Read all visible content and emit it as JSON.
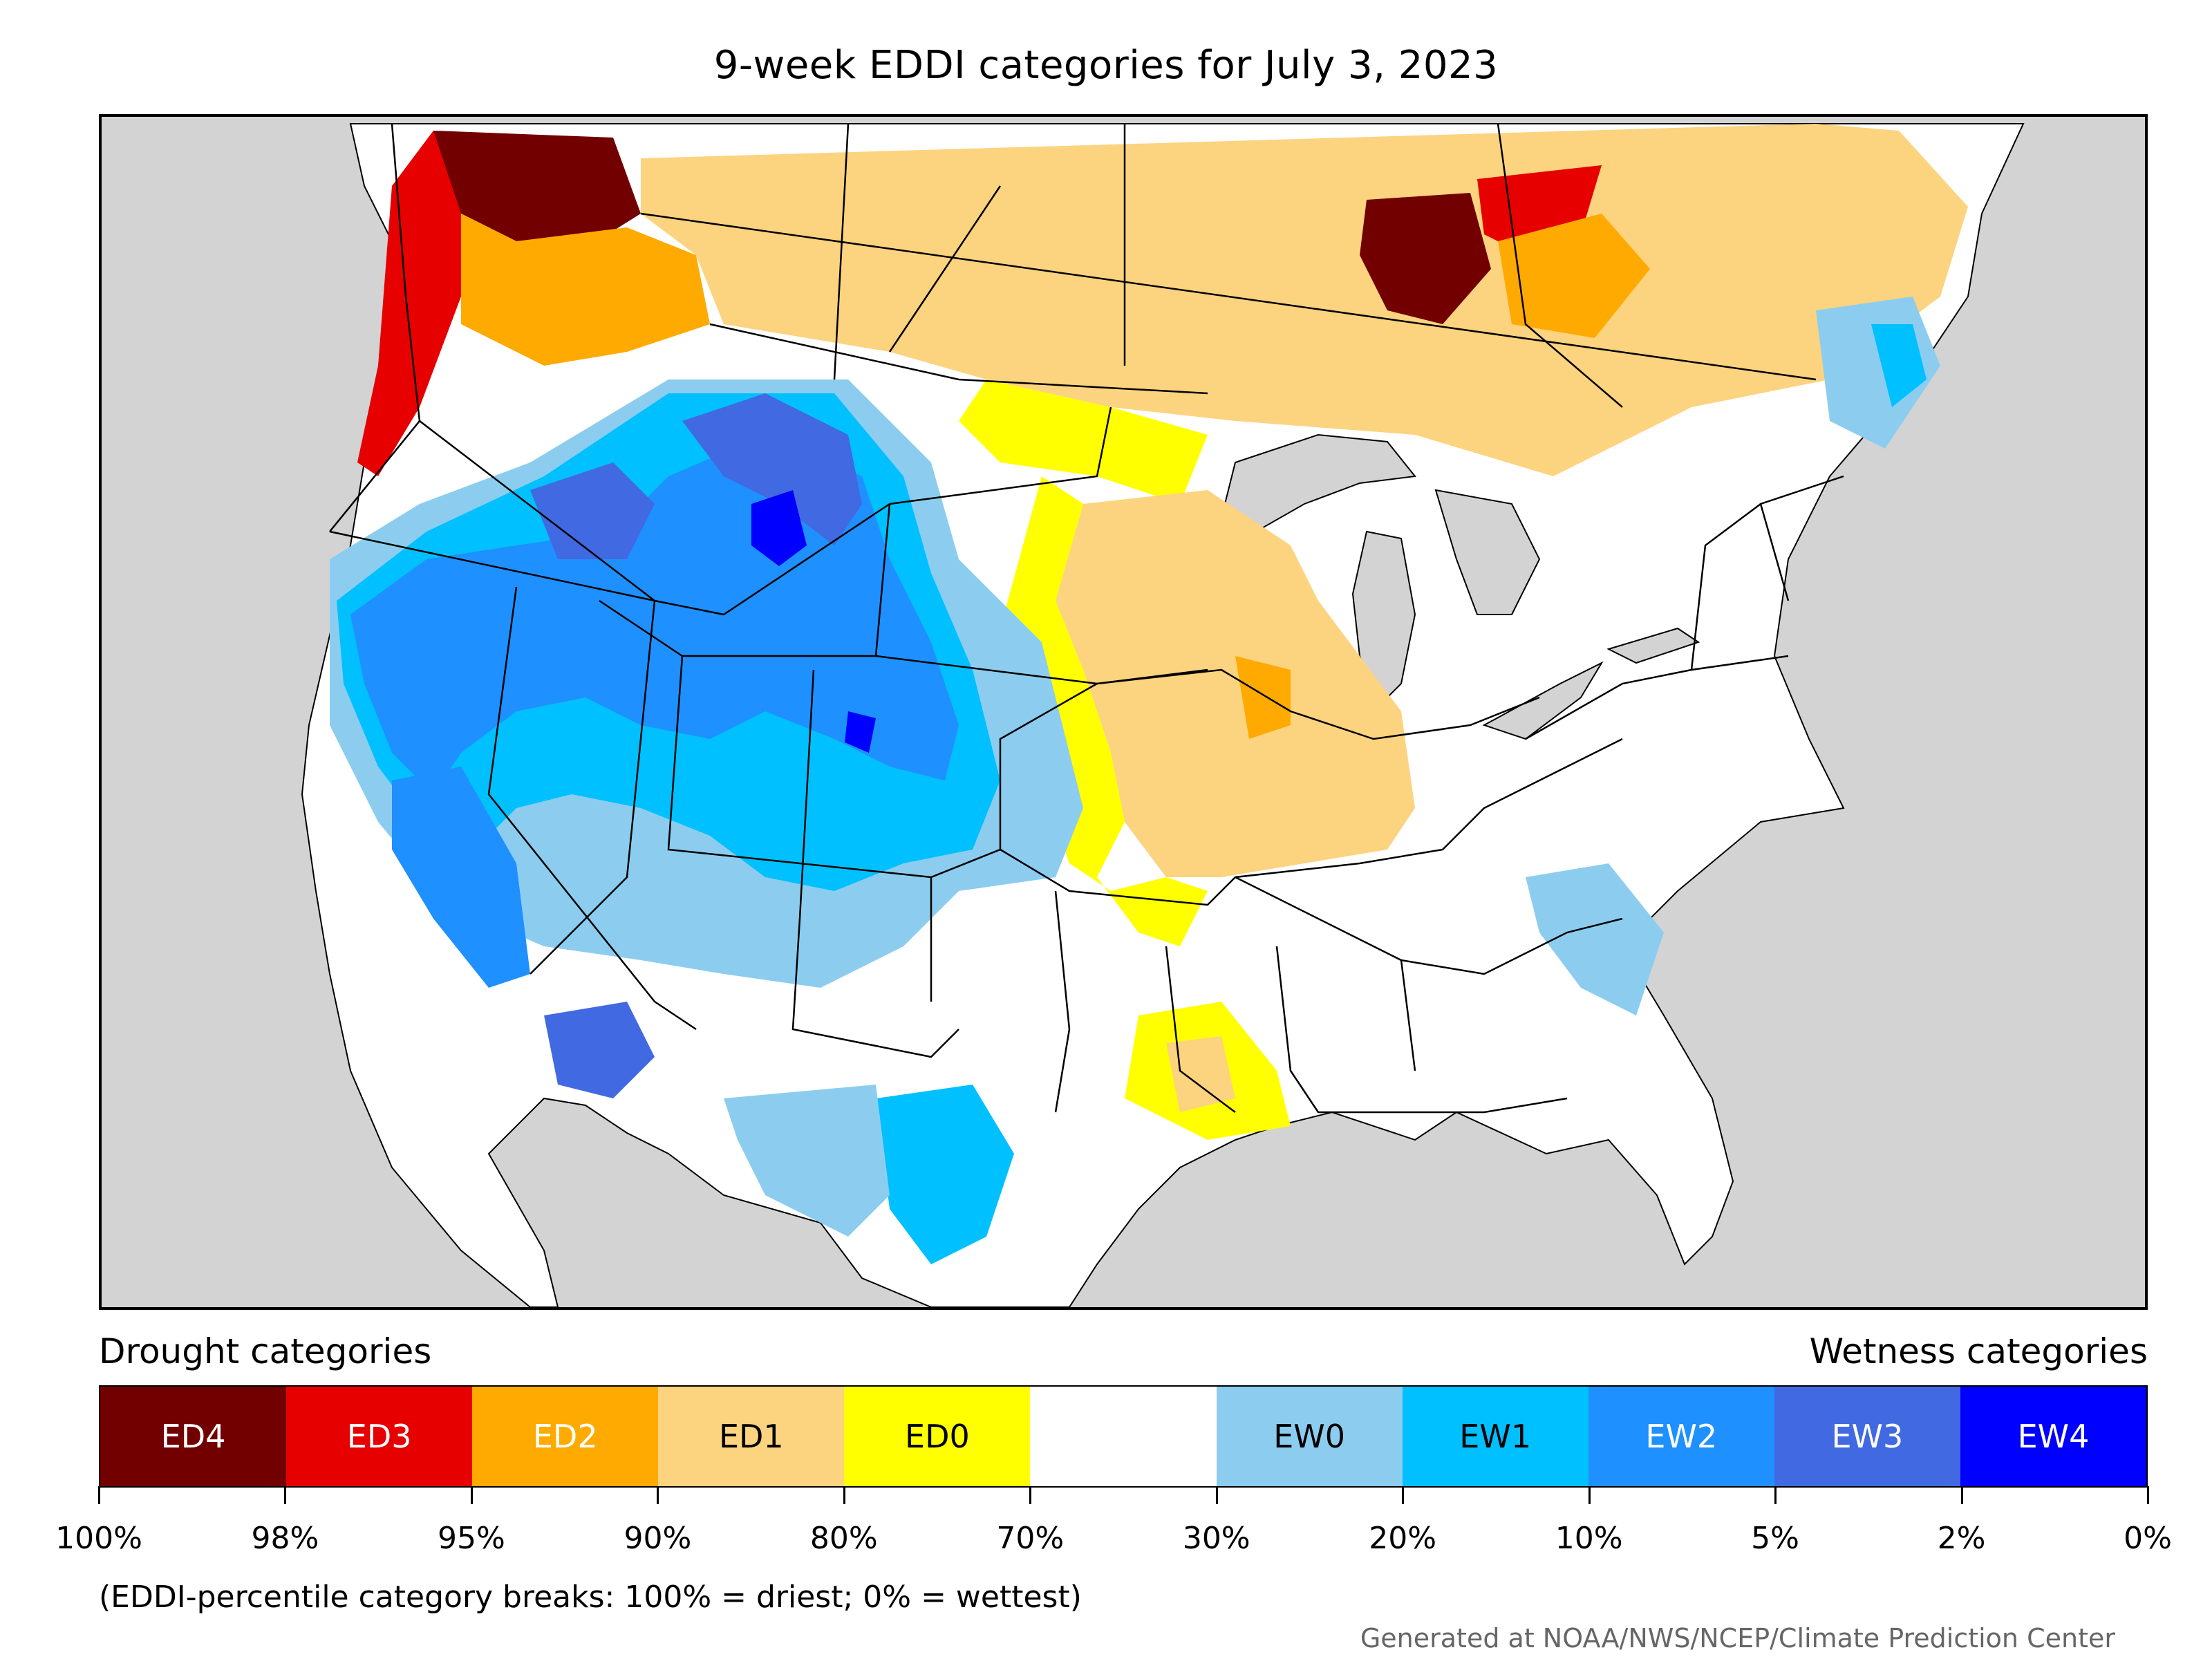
{
  "title": "9-week EDDI categories for July 3, 2023",
  "legend": {
    "drought_heading": "Drought categories",
    "wetness_heading": "Wetness categories",
    "categories": [
      {
        "label": "ED4",
        "color": "#730000",
        "text_color": "#ffffff"
      },
      {
        "label": "ED3",
        "color": "#e60000",
        "text_color": "#ffffff"
      },
      {
        "label": "ED2",
        "color": "#ffaa00",
        "text_color": "#ffffff"
      },
      {
        "label": "ED1",
        "color": "#fcd37f",
        "text_color": "#000000"
      },
      {
        "label": "ED0",
        "color": "#ffff00",
        "text_color": "#000000"
      },
      {
        "label": "",
        "color": "#ffffff",
        "text_color": "#000000"
      },
      {
        "label": "EW0",
        "color": "#8ccdef",
        "text_color": "#000000"
      },
      {
        "label": "EW1",
        "color": "#00c0ff",
        "text_color": "#000000"
      },
      {
        "label": "EW2",
        "color": "#1e90ff",
        "text_color": "#ffffff"
      },
      {
        "label": "EW3",
        "color": "#4169e1",
        "text_color": "#ffffff"
      },
      {
        "label": "EW4",
        "color": "#0000ff",
        "text_color": "#ffffff"
      }
    ],
    "breaks": [
      "100%",
      "98%",
      "95%",
      "90%",
      "80%",
      "70%",
      "30%",
      "20%",
      "10%",
      "5%",
      "2%",
      "0%"
    ]
  },
  "footnote": "(EDDI-percentile category breaks: 100% = driest; 0% = wettest)",
  "credit": "Generated at NOAA/NWS/NCEP/Climate Prediction Center",
  "colors": {
    "ocean": "#d3d3d3",
    "land": "#ffffff",
    "border": "#000000"
  }
}
